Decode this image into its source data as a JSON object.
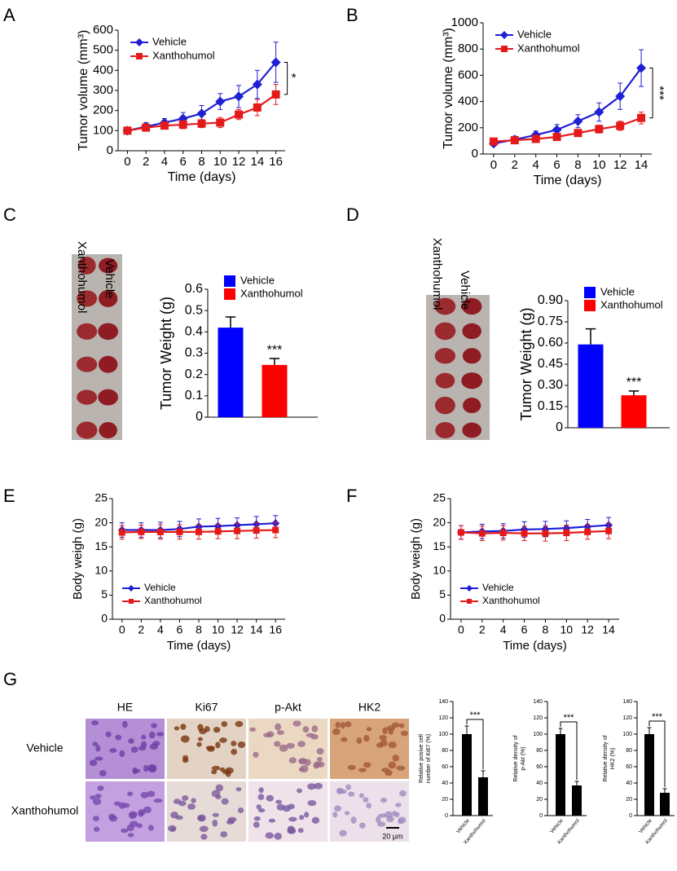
{
  "chart_data": [
    {
      "type": "line",
      "panel": "A",
      "x_label": "Time (days)",
      "y_label": "Tumor volume (mm³)",
      "x": [
        0,
        2,
        4,
        6,
        8,
        10,
        12,
        14,
        16
      ],
      "xlim": [
        -1,
        17
      ],
      "xticks": [
        0,
        2,
        4,
        6,
        8,
        10,
        12,
        14,
        16
      ],
      "ylim": [
        0,
        600
      ],
      "yticks": [
        0,
        100,
        200,
        300,
        400,
        500,
        600
      ],
      "legend": "upper left",
      "annotation": "*",
      "series": [
        {
          "name": "Vehicle",
          "color": "#1f1fd6",
          "marker": "diamond",
          "values": [
            100,
            120,
            140,
            160,
            185,
            245,
            270,
            330,
            440
          ],
          "errors": [
            15,
            20,
            20,
            30,
            40,
            40,
            55,
            70,
            100
          ]
        },
        {
          "name": "Xanthohumol",
          "color": "#e41a1a",
          "marker": "square",
          "values": [
            100,
            115,
            125,
            130,
            135,
            140,
            180,
            215,
            280
          ],
          "errors": [
            10,
            15,
            15,
            20,
            20,
            25,
            25,
            40,
            50
          ]
        }
      ]
    },
    {
      "type": "line",
      "panel": "B",
      "x_label": "Time (days)",
      "y_label": "Tumor volume (mm³)",
      "x": [
        0,
        2,
        4,
        6,
        8,
        10,
        12,
        14
      ],
      "xlim": [
        -1,
        15
      ],
      "xticks": [
        0,
        2,
        4,
        6,
        8,
        10,
        12,
        14
      ],
      "ylim": [
        0,
        1000
      ],
      "yticks": [
        0,
        200,
        400,
        600,
        800,
        1000
      ],
      "legend": "upper left",
      "annotation": "***",
      "series": [
        {
          "name": "Vehicle",
          "color": "#1f1fd6",
          "marker": "diamond",
          "values": [
            80,
            110,
            145,
            185,
            250,
            320,
            440,
            655
          ],
          "errors": [
            20,
            25,
            30,
            40,
            50,
            70,
            100,
            140
          ]
        },
        {
          "name": "Xanthohumol",
          "color": "#e41a1a",
          "marker": "square",
          "values": [
            95,
            105,
            115,
            130,
            160,
            190,
            215,
            275
          ],
          "errors": [
            15,
            15,
            20,
            25,
            25,
            30,
            35,
            45
          ]
        }
      ]
    },
    {
      "type": "bar",
      "panel": "C",
      "y_label": "Tumor Weight (g)",
      "ylim": [
        0,
        0.6
      ],
      "yticks": [
        0,
        0.1,
        0.2,
        0.3,
        0.4,
        0.5,
        0.6
      ],
      "legend": "upper center",
      "annotation": "***",
      "series": [
        {
          "name": "Vehicle",
          "color": "#0000ff",
          "values": [
            0.42
          ],
          "errors": [
            0.05
          ]
        },
        {
          "name": "Xanthohumol",
          "color": "#ff0000",
          "values": [
            0.245
          ],
          "errors": [
            0.03
          ]
        }
      ]
    },
    {
      "type": "bar",
      "panel": "D",
      "y_label": "Tumor Weight (g)",
      "ylim": [
        0,
        0.9
      ],
      "yticks": [
        0,
        0.15,
        {
          "value": 0.3,
          "label": "0.30"
        },
        0.45,
        {
          "value": 0.6,
          "label": "0.60"
        },
        0.75,
        {
          "value": 0.9,
          "label": "0.90"
        }
      ],
      "legend": "upper center",
      "annotation": "***",
      "series": [
        {
          "name": "Vehicle",
          "color": "#0000ff",
          "values": [
            0.59
          ],
          "errors": [
            0.11
          ]
        },
        {
          "name": "Xanthohumol",
          "color": "#ff0000",
          "values": [
            0.23
          ],
          "errors": [
            0.03
          ]
        }
      ]
    },
    {
      "type": "line",
      "panel": "E",
      "x_label": "Time (days)",
      "y_label": "Body weigh (g)",
      "x": [
        0,
        2,
        4,
        6,
        8,
        10,
        12,
        14,
        16
      ],
      "xlim": [
        -1,
        17
      ],
      "xticks": [
        0,
        2,
        4,
        6,
        8,
        10,
        12,
        14,
        16
      ],
      "ylim": [
        0,
        25
      ],
      "yticks": [
        0,
        5,
        10,
        15,
        20,
        25
      ],
      "legend": "lower left",
      "series": [
        {
          "name": "Vehicle",
          "color": "#1f1fd6",
          "marker": "diamond",
          "values": [
            18.5,
            18.5,
            18.5,
            18.7,
            19.2,
            19.3,
            19.5,
            19.7,
            19.9
          ],
          "errors": [
            1.5,
            1.5,
            1.6,
            1.6,
            1.6,
            1.6,
            1.5,
            1.6,
            1.6
          ]
        },
        {
          "name": "Xanthohumol",
          "color": "#e41a1a",
          "marker": "square",
          "values": [
            18,
            18.1,
            18.1,
            18.1,
            18.1,
            18.2,
            18.3,
            18.4,
            18.5
          ],
          "errors": [
            1.4,
            1.4,
            1.5,
            1.5,
            1.5,
            1.5,
            1.6,
            1.6,
            1.6
          ]
        }
      ]
    },
    {
      "type": "line",
      "panel": "F",
      "x_label": "Time (days)",
      "y_label": "Body weigh (g)",
      "x": [
        0,
        2,
        4,
        6,
        8,
        10,
        12,
        14
      ],
      "xlim": [
        -1,
        15
      ],
      "xticks": [
        0,
        2,
        4,
        6,
        8,
        10,
        12,
        14
      ],
      "ylim": [
        0,
        25
      ],
      "yticks": [
        0,
        5,
        10,
        15,
        20,
        25
      ],
      "legend": "lower left",
      "series": [
        {
          "name": "Vehicle",
          "color": "#1f1fd6",
          "marker": "diamond",
          "values": [
            18,
            18.2,
            18.3,
            18.6,
            18.7,
            18.9,
            19.2,
            19.5
          ],
          "errors": [
            1.4,
            1.5,
            1.5,
            1.6,
            1.6,
            1.5,
            1.5,
            1.6
          ]
        },
        {
          "name": "Xanthohumol",
          "color": "#e41a1a",
          "marker": "square",
          "values": [
            18,
            17.8,
            17.9,
            17.8,
            17.8,
            17.9,
            18.1,
            18.3
          ],
          "errors": [
            1.4,
            1.5,
            1.5,
            1.5,
            1.6,
            1.6,
            1.5,
            1.6
          ]
        }
      ]
    },
    {
      "type": "bar",
      "panel": "G",
      "y_label": [
        "Relative posive cell",
        "number of Ki67 (%)"
      ],
      "categories": [
        "Vehicle",
        "Xanthohumol"
      ],
      "values": [
        100,
        47
      ],
      "errors": [
        10,
        8
      ],
      "color": "#000000",
      "ylim": [
        0,
        140
      ],
      "yticks": [
        0,
        20,
        40,
        60,
        80,
        100,
        120,
        140
      ],
      "annotation": "***"
    },
    {
      "type": "bar",
      "y_label": [
        "Relative density of",
        "p-Akt (%)"
      ],
      "categories": [
        "Vehicle",
        "Xanthohumol"
      ],
      "values": [
        100,
        37
      ],
      "errors": [
        7,
        5
      ],
      "color": "#000000",
      "ylim": [
        0,
        140
      ],
      "yticks": [
        0,
        20,
        40,
        60,
        80,
        100,
        120,
        140
      ],
      "annotation": "***"
    },
    {
      "type": "bar",
      "y_label": [
        "Relative density of",
        "HK2 (%)"
      ],
      "categories": [
        "Vehicle",
        "Xanthohumol"
      ],
      "values": [
        100,
        28
      ],
      "errors": [
        8,
        5
      ],
      "color": "#000000",
      "ylim": [
        0,
        140
      ],
      "yticks": [
        0,
        20,
        40,
        60,
        80,
        100,
        120,
        140
      ],
      "annotation": "***"
    }
  ],
  "images": {
    "c_labels": [
      "Xanthohumol",
      "Vehicle"
    ],
    "d_labels": [
      "Xanthohumol",
      "Vehicle"
    ],
    "g": {
      "columns": [
        "HE",
        "Ki67",
        "p-Akt",
        "HK2"
      ],
      "rows": [
        "Vehicle",
        "Xanthohumol"
      ],
      "scale_bar": "20 μm"
    }
  }
}
